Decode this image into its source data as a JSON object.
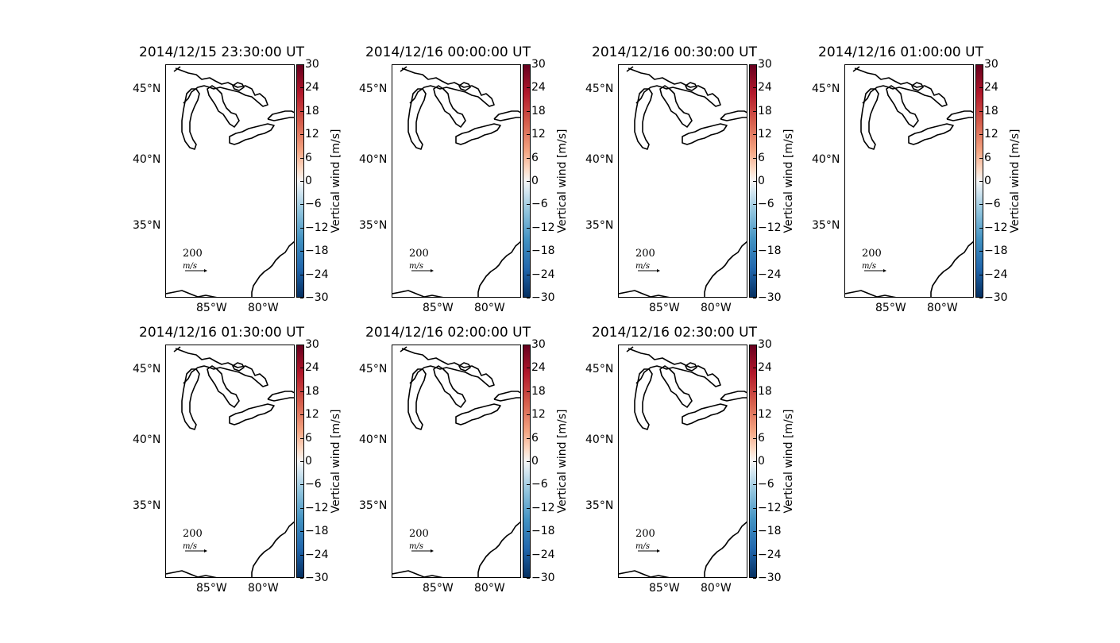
{
  "colorbar": {
    "label": "Vertical wind [m/s]",
    "ticks": [
      "30",
      "24",
      "18",
      "12",
      "6",
      "0",
      "−6",
      "−12",
      "−18",
      "−24",
      "−30"
    ],
    "cmap": [
      "#67001f",
      "#b2182b",
      "#d6604d",
      "#f4a582",
      "#fddbc7",
      "#f7f7f7",
      "#d1e5f0",
      "#92c5de",
      "#4393c3",
      "#2166ac",
      "#053061"
    ]
  },
  "axes": {
    "lat_labels": [
      "45°N",
      "40°N",
      "35°N"
    ],
    "lon_labels": [
      "85°W",
      "80°W"
    ]
  },
  "quiver_label": "200",
  "quiver_unit": "m/s",
  "panels": [
    {
      "title": "2014/12/15 23:30:00 UT"
    },
    {
      "title": "2014/12/16 00:00:00 UT"
    },
    {
      "title": "2014/12/16 00:30:00 UT"
    },
    {
      "title": "2014/12/16 01:00:00 UT"
    },
    {
      "title": "2014/12/16 01:30:00 UT"
    },
    {
      "title": "2014/12/16 02:00:00 UT"
    },
    {
      "title": "2014/12/16 02:30:00 UT"
    }
  ]
}
